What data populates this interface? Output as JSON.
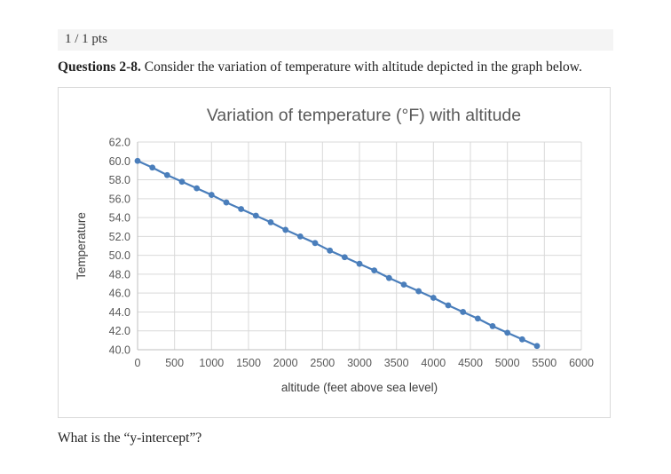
{
  "points_bar": {
    "label": "1 / 1 pts"
  },
  "question": {
    "prefix": "Questions 2-8.",
    "body": "Consider the variation of temperature with altitude depicted in the graph below.",
    "followup": "What is the “y-intercept”?"
  },
  "chart_data": {
    "type": "line",
    "title": "Variation of temperature (°F) with altitude",
    "xlabel": "altitude (feet above sea level)",
    "ylabel": "Temperature",
    "xlim": [
      0,
      6000
    ],
    "ylim": [
      40,
      62
    ],
    "x_ticks": [
      0,
      500,
      1000,
      1500,
      2000,
      2500,
      3000,
      3500,
      4000,
      4500,
      5000,
      5500,
      6000
    ],
    "y_ticks": [
      40,
      42,
      44,
      46,
      48,
      50,
      52,
      54,
      56,
      58,
      60,
      62
    ],
    "y_tick_decimals": 1,
    "grid": true,
    "legend": "none",
    "colors": {
      "line": "#4a7ebb",
      "grid": "#d9d9d9",
      "axis": "#bfbfbf",
      "tick_text": "#595959",
      "title_text": "#595959",
      "axis_label_text": "#3f3f3f"
    },
    "series": [
      {
        "name": "temperature",
        "marker": "circle",
        "x": [
          0,
          200,
          400,
          600,
          800,
          1000,
          1200,
          1400,
          1600,
          1800,
          2000,
          2200,
          2400,
          2600,
          2800,
          3000,
          3200,
          3400,
          3600,
          3800,
          4000,
          4200,
          4400,
          4600,
          4800,
          5000,
          5200,
          5400
        ],
        "y": [
          60.0,
          59.3,
          58.5,
          57.8,
          57.1,
          56.4,
          55.6,
          54.9,
          54.2,
          53.5,
          52.7,
          52.0,
          51.3,
          50.5,
          49.8,
          49.1,
          48.4,
          47.6,
          46.9,
          46.2,
          45.5,
          44.7,
          44.0,
          43.3,
          42.5,
          41.8,
          41.1,
          40.4
        ]
      }
    ]
  }
}
